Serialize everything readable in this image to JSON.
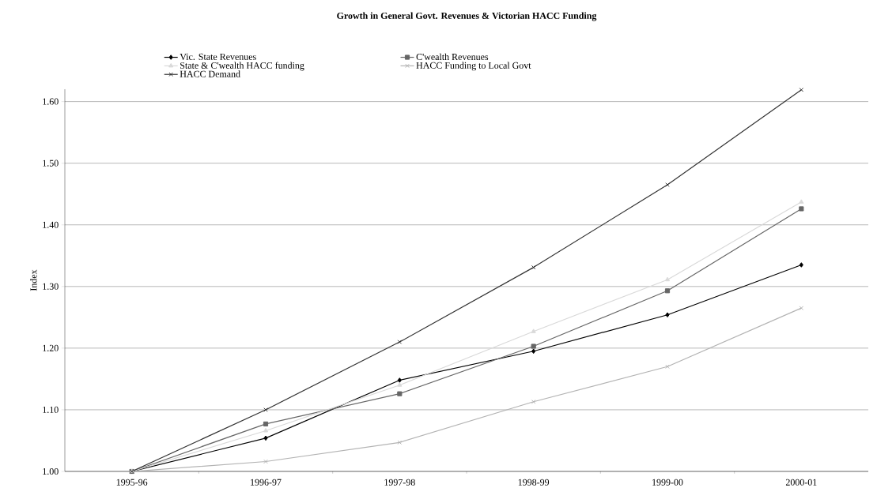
{
  "chart_data": {
    "type": "line",
    "title": "Growth in General Govt. Revenues & Victorian HACC Funding",
    "ylabel": "Index",
    "categories": [
      "1995-96",
      "1996-97",
      "1997-98",
      "1998-99",
      "1999-00",
      "2000-01"
    ],
    "series": [
      {
        "name": "Vic. State Revenues",
        "color": "#000000",
        "marker": "diamond",
        "values": [
          1.0,
          1.054,
          1.148,
          1.195,
          1.254,
          1.335
        ]
      },
      {
        "name": "C'wealth Revenues",
        "color": "#666666",
        "marker": "square",
        "values": [
          1.0,
          1.077,
          1.126,
          1.203,
          1.293,
          1.426
        ]
      },
      {
        "name": "State & C'wealth HACC funding",
        "color": "#d9d9d9",
        "marker": "triangle",
        "values": [
          1.0,
          1.066,
          1.14,
          1.227,
          1.311,
          1.437
        ]
      },
      {
        "name": "HACC Funding to Local Govt",
        "color": "#b3b3b3",
        "marker": "cross",
        "values": [
          1.0,
          1.016,
          1.047,
          1.113,
          1.17,
          1.265
        ]
      },
      {
        "name": "HACC Demand",
        "color": "#333333",
        "marker": "cross",
        "values": [
          1.0,
          1.1,
          1.21,
          1.331,
          1.465,
          1.619
        ]
      }
    ],
    "ylim": [
      1.0,
      1.62
    ],
    "yticks": [
      {
        "value": 1.0,
        "label": "1.00"
      },
      {
        "value": 1.1,
        "label": "1.10"
      },
      {
        "value": 1.2,
        "label": "1.20"
      },
      {
        "value": 1.3,
        "label": "1.30"
      },
      {
        "value": 1.4,
        "label": "1.40"
      },
      {
        "value": 1.5,
        "label": "1.50"
      },
      {
        "value": 1.6,
        "label": "1.60"
      }
    ],
    "grid": "y",
    "legend": "top"
  }
}
